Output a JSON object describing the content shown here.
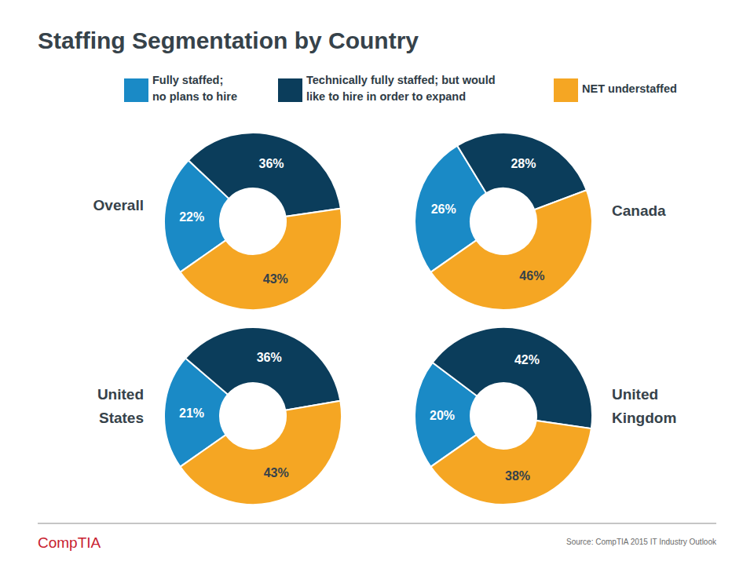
{
  "header": {
    "title": "Staffing Segmentation by Country"
  },
  "chart_data": {
    "type": "donut",
    "categories": [
      "Overall",
      "Canada",
      "United\nStates",
      "United\nKingdom"
    ],
    "series": [
      {
        "name": "Fully staffed;\nno plans to hire",
        "color": "#1a8ac6",
        "values": [
          22,
          26,
          21,
          20
        ],
        "value_labels": [
          "22%",
          "26%",
          "21%",
          "20%"
        ]
      },
      {
        "name": "Technically fully staffed; but would\nlike to hire in order to expand",
        "color": "#0b3d5b",
        "values": [
          36,
          28,
          36,
          42
        ],
        "value_labels": [
          "36%",
          "28%",
          "36%",
          "42%"
        ]
      },
      {
        "name": "NET understaffed",
        "color": "#f5a623",
        "values": [
          43,
          46,
          43,
          38
        ],
        "value_labels": [
          "43%",
          "46%",
          "43%",
          "38%"
        ]
      }
    ],
    "data_labels": true,
    "legend": "top"
  },
  "footer": {
    "logo": "CompTIA",
    "source": "Source: CompTIA 2015 IT Industry Outlook"
  }
}
